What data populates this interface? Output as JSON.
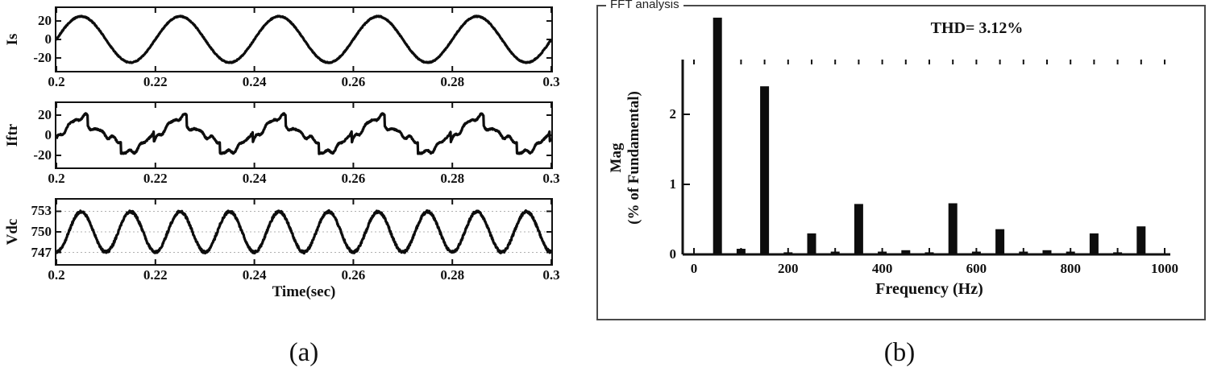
{
  "figure": {
    "caption_a": "(a)",
    "caption_b": "(b)"
  },
  "panel_a": {
    "xlabel": "Time(sec)",
    "subplots": [
      {
        "ylabel": "Is"
      },
      {
        "ylabel": "Iftr"
      },
      {
        "ylabel": "Vdc"
      }
    ]
  },
  "panel_b": {
    "title": "FFT analysis",
    "thd_text": "THD= 3.12%",
    "ylabel_line1": "Mag",
    "ylabel_line2": "(% of Fundamental)",
    "xlabel": "Frequency (Hz)"
  },
  "chart_data": [
    {
      "id": "is",
      "type": "line",
      "ylabel": "Is",
      "xlabel": "Time(sec)",
      "x_range": [
        0.2,
        0.3
      ],
      "ylim": [
        -34,
        34
      ],
      "y_ticks": [
        20,
        0,
        -20
      ],
      "y_tick_labels": [
        "20",
        "0",
        "-20"
      ],
      "x_ticks": [
        0.2,
        0.22,
        0.24,
        0.26,
        0.28,
        0.3
      ],
      "x_tick_labels": [
        "0.2",
        "0.22",
        "0.24",
        "0.26",
        "0.28",
        "0.3"
      ],
      "grid": false,
      "signal": {
        "kind": "sine",
        "frequency_hz": 50,
        "amplitude": 25,
        "offset": 0,
        "phase_deg": 0,
        "noise": 0.5
      }
    },
    {
      "id": "iftr",
      "type": "line",
      "ylabel": "Iftr",
      "xlabel": "Time(sec)",
      "x_range": [
        0.2,
        0.3
      ],
      "ylim": [
        -32,
        32
      ],
      "y_ticks": [
        20,
        0,
        -20
      ],
      "y_tick_labels": [
        "20",
        "0",
        "-20"
      ],
      "x_ticks": [
        0.2,
        0.22,
        0.24,
        0.26,
        0.28,
        0.3
      ],
      "x_tick_labels": [
        "0.2",
        "0.22",
        "0.24",
        "0.26",
        "0.28",
        "0.3"
      ],
      "grid": false,
      "signal": {
        "kind": "distorted-sine",
        "frequency_hz": 50,
        "amplitude": 20,
        "offset": 0,
        "noise": 0.6
      }
    },
    {
      "id": "vdc",
      "type": "line",
      "ylabel": "Vdc",
      "xlabel": "Time(sec)",
      "x_range": [
        0.2,
        0.3
      ],
      "ylim": [
        745.3,
        754.7
      ],
      "y_ticks": [
        753,
        750,
        747
      ],
      "y_tick_labels": [
        "753",
        "750",
        "747"
      ],
      "x_ticks": [
        0.2,
        0.22,
        0.24,
        0.26,
        0.28,
        0.3
      ],
      "x_tick_labels": [
        "0.2",
        "0.22",
        "0.24",
        "0.26",
        "0.28",
        "0.3"
      ],
      "grid": true,
      "gridlines": [
        753,
        750,
        747
      ],
      "signal": {
        "kind": "sine",
        "frequency_hz": 100,
        "amplitude": 2.95,
        "offset": 750,
        "phase_deg": -90,
        "noise": 0.18
      }
    },
    {
      "id": "fft",
      "type": "bar",
      "title": "FFT analysis",
      "thd_percent": 3.12,
      "xlabel": "Frequency (Hz)",
      "ylabel": "Mag (% of Fundamental)",
      "fundamental_hz": 50,
      "note": "Fundamental bar (50 Hz = 100%) is clipped by the axis top",
      "frequencies": [
        50,
        100,
        150,
        200,
        250,
        300,
        350,
        400,
        450,
        500,
        550,
        600,
        650,
        700,
        750,
        800,
        850,
        900,
        950
      ],
      "values": [
        100,
        0.08,
        2.4,
        0.03,
        0.3,
        0.04,
        0.72,
        0.04,
        0.06,
        0.03,
        0.73,
        0.04,
        0.36,
        0.04,
        0.06,
        0.04,
        0.3,
        0.03,
        0.4
      ],
      "x_ticks": [
        0,
        200,
        400,
        600,
        800,
        1000
      ],
      "x_tick_labels": [
        "0",
        "200",
        "400",
        "600",
        "800",
        "1000"
      ],
      "y_ticks": [
        0,
        1,
        2
      ],
      "y_tick_labels": [
        "0",
        "1",
        "2"
      ],
      "ylim": [
        0,
        2.8
      ],
      "xlim": [
        0,
        1000
      ]
    }
  ]
}
